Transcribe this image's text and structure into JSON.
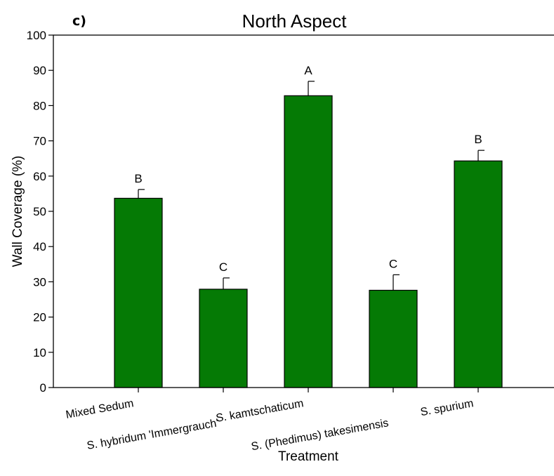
{
  "panel_label": "c)",
  "chart_data": {
    "type": "bar",
    "title": "North Aspect",
    "xlabel": "Treatment",
    "ylabel": "Wall Coverage (%)",
    "ylim": [
      0,
      100
    ],
    "yticks": [
      0,
      10,
      20,
      30,
      40,
      50,
      60,
      70,
      80,
      90,
      100
    ],
    "grid": false,
    "categories": [
      "Mixed Sedum",
      "S. hybridum 'Immergrauch'",
      "S. kamtschaticum",
      "S. (Phedimus) takesimensis",
      "S. spurium"
    ],
    "values": [
      53.7,
      27.9,
      82.8,
      27.6,
      64.3
    ],
    "error_upper": [
      2.5,
      3.2,
      4.1,
      4.4,
      3.0
    ],
    "significance_letters": [
      "B",
      "C",
      "A",
      "C",
      "B"
    ],
    "bar_color": "#057a05",
    "bar_edge_color": "#000000"
  }
}
